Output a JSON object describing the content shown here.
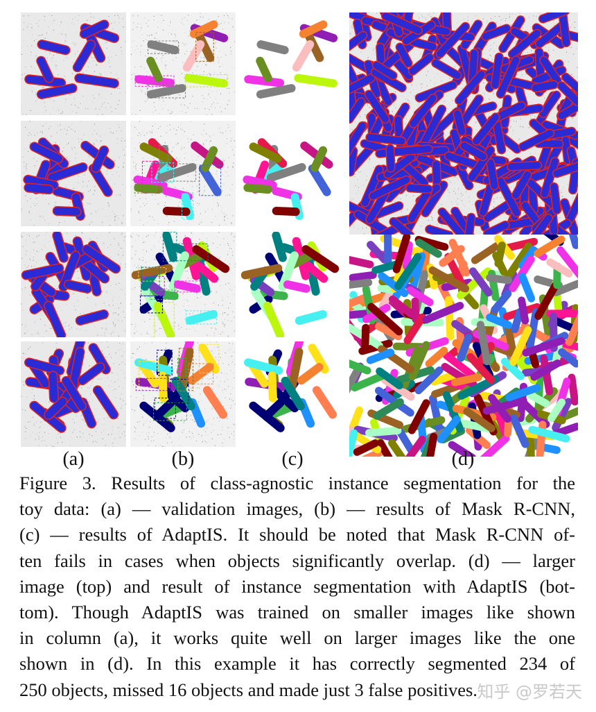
{
  "figure": {
    "column_labels": [
      "(a)",
      "(b)",
      "(c)",
      "(d)"
    ],
    "panels": [
      {
        "name": "validation-image-1",
        "kind": "input"
      },
      {
        "name": "mask-rcnn-result-1",
        "kind": "maskrcnn"
      },
      {
        "name": "adaptis-result-1",
        "kind": "adaptis"
      },
      {
        "name": "validation-image-2",
        "kind": "input"
      },
      {
        "name": "mask-rcnn-result-2",
        "kind": "maskrcnn"
      },
      {
        "name": "adaptis-result-2",
        "kind": "adaptis"
      },
      {
        "name": "validation-image-3",
        "kind": "input"
      },
      {
        "name": "mask-rcnn-result-3",
        "kind": "maskrcnn"
      },
      {
        "name": "adaptis-result-3",
        "kind": "adaptis"
      },
      {
        "name": "validation-image-4",
        "kind": "input"
      },
      {
        "name": "mask-rcnn-result-4",
        "kind": "maskrcnn"
      },
      {
        "name": "adaptis-result-4",
        "kind": "adaptis"
      },
      {
        "name": "larger-image-top",
        "kind": "input"
      },
      {
        "name": "larger-image-segmentation-bottom",
        "kind": "adaptis"
      }
    ],
    "colors": {
      "object_fill": "#2b2bd6",
      "object_outline": "#e0231f",
      "noise_background": "#e9e9e9"
    }
  },
  "caption": {
    "lines": [
      "Figure 3. Results of class-agnostic instance segmentation for the",
      "toy data: (a) — validation images, (b) — results of Mask R-CNN,",
      "(c) — results of AdaptIS. It should be noted that Mask R-CNN of-",
      "ten fails in cases when objects significantly overlap.  (d) — larger",
      "image (top) and result of instance segmentation with AdaptIS (bot-",
      "tom). Though AdaptIS was trained on smaller images like shown",
      "in column (a), it works quite well on larger images like the one",
      "shown in (d).  In this example it has correctly segmented 234 of",
      "250 objects, missed 16 objects and made just 3 false positives."
    ]
  },
  "watermark": "知乎 @罗若天"
}
